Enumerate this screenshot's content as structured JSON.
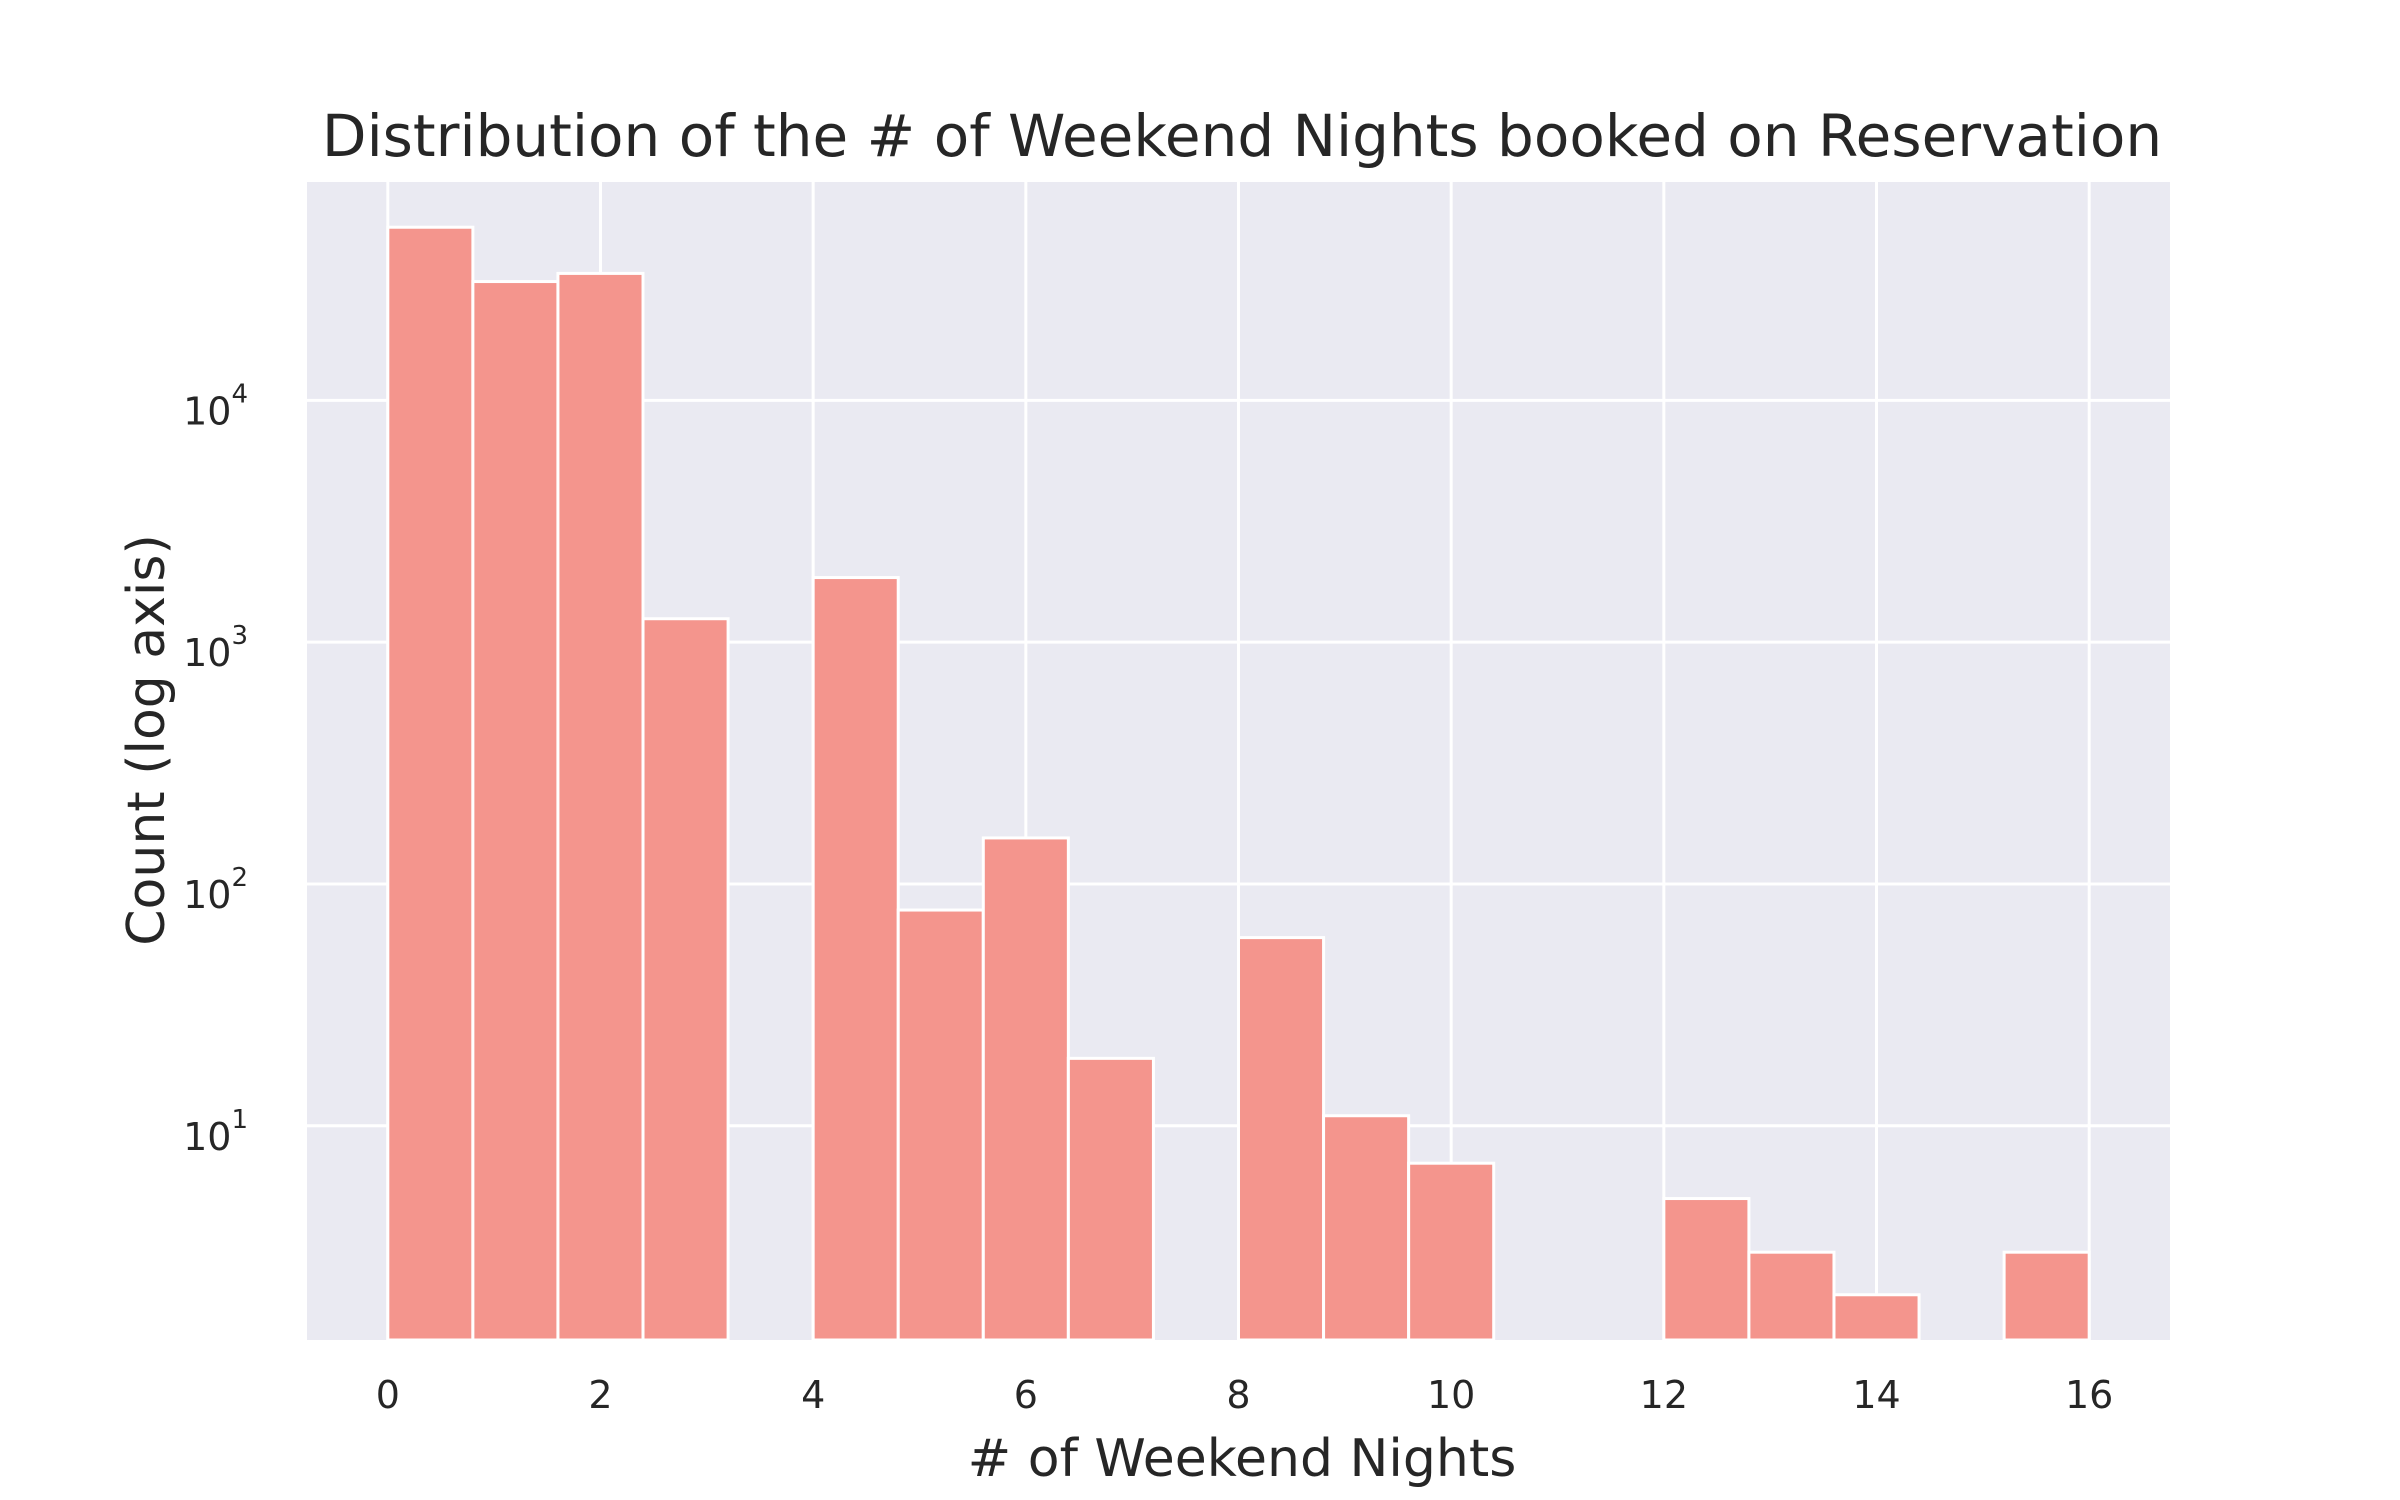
{
  "chart_data": {
    "type": "bar",
    "title": "Distribution of the # of Weekend Nights booked on Reservation",
    "xlabel": "# of Weekend Nights",
    "ylabel": "Count (log axis)",
    "y_scale": "log",
    "ylim": [
      1.3,
      80000
    ],
    "xlim": [
      -0.76,
      16.76
    ],
    "bin_width": 0.8,
    "x_ticks": [
      0,
      2,
      4,
      6,
      8,
      10,
      12,
      14,
      16
    ],
    "y_ticks": [
      {
        "value": 10,
        "base": "10",
        "exp": "1"
      },
      {
        "value": 100,
        "base": "10",
        "exp": "2"
      },
      {
        "value": 1000,
        "base": "10",
        "exp": "3"
      },
      {
        "value": 10000,
        "base": "10",
        "exp": "4"
      }
    ],
    "grid": true,
    "colors": {
      "bar": "#f4958d",
      "bar_edge": "#ffffff",
      "background": "#eaeaf2",
      "grid": "#ffffff"
    },
    "bins": [
      {
        "x": 0.0,
        "value": 52000
      },
      {
        "x": 0.8,
        "value": 31000
      },
      {
        "x": 1.6,
        "value": 33500
      },
      {
        "x": 2.4,
        "value": 1250
      },
      {
        "x": 4.0,
        "value": 1850
      },
      {
        "x": 4.8,
        "value": 78
      },
      {
        "x": 5.6,
        "value": 155
      },
      {
        "x": 6.4,
        "value": 19
      },
      {
        "x": 8.0,
        "value": 60
      },
      {
        "x": 8.8,
        "value": 11
      },
      {
        "x": 9.6,
        "value": 7
      },
      {
        "x": 12.0,
        "value": 5
      },
      {
        "x": 12.8,
        "value": 3
      },
      {
        "x": 13.6,
        "value": 2
      },
      {
        "x": 15.2,
        "value": 3
      }
    ]
  }
}
